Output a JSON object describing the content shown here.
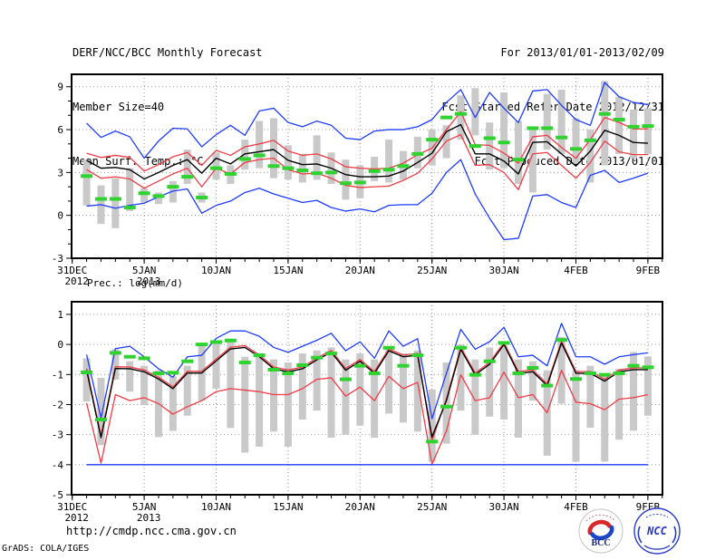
{
  "header": {
    "title": "DERF/NCC/BCC Monthly Forecast",
    "member_size": "Member Size=40",
    "for_range": "For 2013/01/01-2013/02/09",
    "fcst_started": "Fcst Started Refer Date 2012/12/31",
    "fcst_produced": "Fcst Produced Date 2013/01/01"
  },
  "footer": {
    "url": "http://cmdp.ncc.cma.gov.cn",
    "credit": "GrADS: COLA/IGES",
    "logos": {
      "bcc": "BCC",
      "ncc": "NCC"
    }
  },
  "colors": {
    "blue": "#1e3cff",
    "red": "#f03c46",
    "black": "#000000",
    "green": "#2fd32f",
    "bar": "#c9c9c9",
    "grid": "#999999",
    "frame": "#000000"
  },
  "chart_data": [
    {
      "type": "line",
      "name": "surface-temperature",
      "title": "Mean Surf. Temp.: °C",
      "ylabel": "°C",
      "ylim": [
        -3,
        9.87
      ],
      "yticks": [
        -3,
        0,
        3,
        6,
        9
      ],
      "grid_yticks": [
        0,
        3,
        6,
        9
      ],
      "n_days": 40,
      "x_ticks": [
        {
          "k": 0,
          "label": "31DEC",
          "sub": "2012"
        },
        {
          "k": 5,
          "label": "5JAN",
          "sub": "2013"
        },
        {
          "k": 10,
          "label": "10JAN"
        },
        {
          "k": 15,
          "label": "15JAN"
        },
        {
          "k": 20,
          "label": "20JAN"
        },
        {
          "k": 25,
          "label": "25JAN"
        },
        {
          "k": 30,
          "label": "30JAN"
        },
        {
          "k": 35,
          "label": "4FEB"
        },
        {
          "k": 40,
          "label": "9FEB"
        }
      ],
      "series": [
        {
          "name": "ensemble-max",
          "color": "blue",
          "values": [
            6.45,
            5.45,
            5.9,
            5.5,
            4.0,
            5.2,
            6.1,
            6.05,
            4.8,
            5.65,
            6.3,
            5.6,
            7.3,
            7.5,
            6.5,
            6.2,
            6.6,
            6.3,
            5.4,
            5.3,
            5.9,
            6.0,
            6.0,
            6.2,
            6.7,
            7.9,
            8.8,
            6.85,
            8.6,
            7.5,
            6.5,
            8.7,
            8.8,
            7.7,
            6.7,
            6.3,
            9.3,
            8.3,
            7.9,
            7.75
          ]
        },
        {
          "name": "upper-quartile",
          "color": "red",
          "values": [
            4.35,
            4.05,
            4.2,
            4.05,
            3.1,
            3.55,
            4.1,
            4.4,
            3.5,
            4.55,
            4.2,
            4.8,
            5.0,
            5.25,
            4.5,
            4.2,
            4.3,
            3.95,
            3.4,
            3.3,
            3.25,
            3.3,
            3.65,
            4.25,
            4.7,
            6.0,
            7.25,
            4.95,
            4.9,
            4.35,
            3.65,
            5.5,
            5.6,
            4.75,
            4.0,
            5.3,
            6.85,
            6.5,
            6.05,
            6.05
          ]
        },
        {
          "name": "ensemble-mean",
          "color": "black",
          "values": [
            3.85,
            3.3,
            3.35,
            3.2,
            2.55,
            3.0,
            3.5,
            3.9,
            2.95,
            4.0,
            3.6,
            4.3,
            4.45,
            4.6,
            3.85,
            3.55,
            3.6,
            3.3,
            2.85,
            2.7,
            2.7,
            2.75,
            3.1,
            3.7,
            4.35,
            5.85,
            6.35,
            4.3,
            4.3,
            3.8,
            2.9,
            5.1,
            5.15,
            4.3,
            3.45,
            4.5,
            5.95,
            5.6,
            5.1,
            5.05
          ]
        },
        {
          "name": "lower-quartile",
          "color": "red",
          "values": [
            3.2,
            2.6,
            2.7,
            2.55,
            1.9,
            2.4,
            2.9,
            3.3,
            2.0,
            3.3,
            2.9,
            3.7,
            3.9,
            4.0,
            3.2,
            2.9,
            2.95,
            2.6,
            2.1,
            1.95,
            2.0,
            2.05,
            2.45,
            2.95,
            3.95,
            5.2,
            5.65,
            3.5,
            3.55,
            3.0,
            1.8,
            4.3,
            4.4,
            3.5,
            2.6,
            3.7,
            5.2,
            4.45,
            4.25,
            4.25
          ]
        },
        {
          "name": "ensemble-min",
          "color": "blue",
          "values": [
            0.65,
            0.75,
            0.5,
            0.7,
            0.85,
            1.3,
            1.7,
            1.85,
            0.15,
            0.7,
            1.0,
            1.6,
            1.9,
            1.5,
            1.2,
            0.9,
            1.05,
            0.55,
            0.3,
            0.45,
            0.25,
            0.7,
            0.75,
            0.75,
            1.55,
            3.0,
            3.9,
            1.5,
            -0.2,
            -1.7,
            -1.6,
            1.35,
            1.45,
            0.9,
            0.55,
            2.8,
            3.15,
            2.3,
            2.6,
            2.95
          ]
        }
      ],
      "bars": {
        "name": "member-range",
        "lo": [
          0.7,
          -0.6,
          -0.9,
          0.3,
          0.9,
          0.8,
          0.9,
          2.2,
          0.9,
          2.5,
          2.2,
          3.2,
          3.3,
          2.6,
          2.5,
          2.3,
          2.5,
          2.2,
          1.1,
          1.2,
          2.4,
          2.3,
          2.5,
          3.3,
          3.5,
          4.0,
          5.3,
          5.6,
          3.2,
          3.3,
          2.2,
          1.6,
          4.6,
          4.3,
          3.6,
          2.3,
          3.5,
          4.3,
          4.0,
          4.3
        ],
        "hi": [
          3.9,
          2.1,
          2.6,
          3.3,
          1.9,
          1.6,
          2.4,
          4.6,
          1.6,
          4.4,
          3.5,
          5.3,
          6.6,
          6.8,
          4.9,
          4.3,
          5.6,
          4.4,
          3.9,
          3.5,
          4.1,
          5.3,
          4.5,
          5.5,
          6.0,
          6.3,
          8.4,
          8.9,
          6.5,
          8.6,
          6.6,
          6.1,
          8.5,
          8.8,
          6.8,
          6.0,
          9.4,
          8.3,
          7.4,
          7.5
        ]
      },
      "obs": {
        "name": "observation-dash",
        "values": [
          2.75,
          1.15,
          1.15,
          0.55,
          1.55,
          1.35,
          2.0,
          2.7,
          1.25,
          3.3,
          2.9,
          3.95,
          4.2,
          3.45,
          3.3,
          3.15,
          2.95,
          3.0,
          2.25,
          2.3,
          3.1,
          3.2,
          3.45,
          4.3,
          5.3,
          6.85,
          7.1,
          4.85,
          5.4,
          5.1,
          3.9,
          6.1,
          6.1,
          5.45,
          4.65,
          5.25,
          7.1,
          6.7,
          6.2,
          6.25
        ]
      }
    },
    {
      "type": "line",
      "name": "precipitation",
      "title": "Prec.: log(mm/d)",
      "ylabel": "log(mm/d)",
      "ylim": [
        -5,
        1.42
      ],
      "yticks": [
        -5,
        -4,
        -3,
        -2,
        -1,
        0,
        1
      ],
      "grid_yticks": [
        -4,
        -3,
        -2,
        -1,
        0,
        1
      ],
      "n_days": 40,
      "x_ticks": [
        {
          "k": 0,
          "label": "31DEC",
          "sub": "2012"
        },
        {
          "k": 5,
          "label": "5JAN",
          "sub": "2013"
        },
        {
          "k": 10,
          "label": "10JAN"
        },
        {
          "k": 15,
          "label": "15JAN"
        },
        {
          "k": 20,
          "label": "20JAN"
        },
        {
          "k": 25,
          "label": "25JAN"
        },
        {
          "k": 30,
          "label": "30JAN"
        },
        {
          "k": 35,
          "label": "4FEB"
        },
        {
          "k": 40,
          "label": "9FEB"
        }
      ],
      "series": [
        {
          "name": "ensemble-max",
          "color": "blue",
          "values": [
            -0.34,
            -2.45,
            -0.14,
            -0.06,
            -0.41,
            -0.81,
            -1.09,
            -0.41,
            -0.36,
            0.2,
            0.45,
            0.45,
            0.27,
            -0.1,
            -0.26,
            -0.06,
            0.14,
            0.37,
            -0.21,
            0.09,
            -0.46,
            0.45,
            -0.06,
            0.19,
            -2.47,
            -0.96,
            0.5,
            -0.16,
            0.09,
            0.57,
            -0.41,
            -0.36,
            -0.71,
            0.7,
            -0.41,
            -0.41,
            -0.66,
            -0.41,
            -0.34,
            -0.28
          ]
        },
        {
          "name": "upper-quartile",
          "color": "red",
          "values": [
            -0.8,
            -3.04,
            -0.74,
            -0.75,
            -0.85,
            -1.09,
            -1.41,
            -0.89,
            -0.89,
            -0.49,
            -0.09,
            -0.04,
            -0.35,
            -0.75,
            -0.85,
            -0.75,
            -0.45,
            -0.2,
            -0.8,
            -0.5,
            -0.9,
            -0.15,
            -0.35,
            -0.3,
            -3.2,
            -1.81,
            -0.1,
            -0.95,
            -0.6,
            0.06,
            -0.9,
            -0.85,
            -1.31,
            0.11,
            -0.9,
            -0.9,
            -1.16,
            -0.85,
            -0.78,
            -0.78
          ]
        },
        {
          "name": "ensemble-mean",
          "color": "black",
          "values": [
            -0.86,
            -3.1,
            -0.8,
            -0.81,
            -0.91,
            -1.15,
            -1.47,
            -0.95,
            -0.95,
            -0.55,
            -0.15,
            -0.1,
            -0.41,
            -0.81,
            -0.91,
            -0.81,
            -0.51,
            -0.26,
            -0.86,
            -0.56,
            -0.96,
            -0.21,
            -0.41,
            -0.36,
            -3.08,
            -1.87,
            -0.16,
            -1.01,
            -0.66,
            0.0,
            -0.96,
            -0.91,
            -1.37,
            0.05,
            -0.96,
            -0.96,
            -1.22,
            -0.91,
            -0.84,
            -0.84
          ]
        },
        {
          "name": "lower-quartile",
          "color": "red",
          "values": [
            -1.95,
            -3.95,
            -1.67,
            -1.87,
            -1.77,
            -1.97,
            -2.32,
            -2.07,
            -1.87,
            -1.57,
            -1.47,
            -1.52,
            -1.57,
            -1.67,
            -1.67,
            -1.47,
            -1.16,
            -1.11,
            -1.72,
            -1.42,
            -1.87,
            -1.06,
            -1.47,
            -1.26,
            -3.98,
            -2.88,
            -1.01,
            -1.87,
            -1.77,
            -0.92,
            -1.77,
            -1.67,
            -2.27,
            -0.86,
            -1.92,
            -1.97,
            -2.17,
            -1.82,
            -1.77,
            -1.67
          ]
        },
        {
          "name": "ensemble-min",
          "color": "blue",
          "values": [
            -4,
            -4,
            -4,
            -4,
            -4,
            -4,
            -4,
            -4,
            -4,
            -4,
            -4,
            -4,
            -4,
            -4,
            -4,
            -4,
            -4,
            -4,
            -4,
            -4,
            -4,
            -4,
            -4,
            -4,
            -4,
            -4,
            -4,
            -4,
            -4,
            -4,
            -4,
            -4,
            -4,
            -4,
            -4,
            -4,
            -4,
            -4,
            -4,
            -4
          ]
        }
      ],
      "bars": {
        "name": "member-range",
        "lo": [
          -1.9,
          -3.35,
          -1.17,
          -1.57,
          -2.02,
          -3.08,
          -2.88,
          -2.37,
          -1.87,
          -1.47,
          -2.78,
          -3.6,
          -3.4,
          -2.9,
          -3.4,
          -2.5,
          -2.2,
          -3.1,
          -3.0,
          -2.7,
          -3.1,
          -2.3,
          -2.6,
          -2.9,
          -3.9,
          -3.3,
          -2.2,
          -3.0,
          -2.4,
          -2.5,
          -3.1,
          -1.87,
          -3.7,
          -1.97,
          -3.9,
          -2.77,
          -3.9,
          -3.17,
          -2.87,
          -2.37
        ],
        "hi": [
          -0.46,
          -1.11,
          -0.16,
          -0.56,
          -0.71,
          -0.86,
          -1.06,
          -0.71,
          -0.06,
          0.05,
          0.19,
          -0.41,
          -0.3,
          -0.5,
          -0.6,
          -0.3,
          -0.2,
          -0.1,
          -0.5,
          -0.3,
          -0.5,
          -0.1,
          -0.3,
          -0.2,
          -1.5,
          -0.6,
          0.0,
          -0.5,
          -0.1,
          -0.05,
          -0.5,
          -0.56,
          -0.86,
          0.25,
          -0.86,
          -0.71,
          -0.96,
          -0.81,
          -0.25,
          -0.4
        ]
      },
      "obs": {
        "name": "observation-dash",
        "values": [
          -0.93,
          -2.5,
          -0.28,
          -0.41,
          -0.46,
          -0.96,
          -0.94,
          -0.56,
          0.0,
          0.08,
          0.13,
          -0.6,
          -0.36,
          -0.84,
          -0.96,
          -0.69,
          -0.44,
          -0.3,
          -1.16,
          -0.71,
          -0.96,
          -0.11,
          -0.71,
          -0.36,
          -3.23,
          -2.07,
          -0.11,
          -1.01,
          -0.56,
          0.05,
          -0.96,
          -0.78,
          -1.37,
          0.15,
          -1.15,
          -0.96,
          -1.01,
          -0.96,
          -0.71,
          -0.76
        ]
      }
    }
  ]
}
